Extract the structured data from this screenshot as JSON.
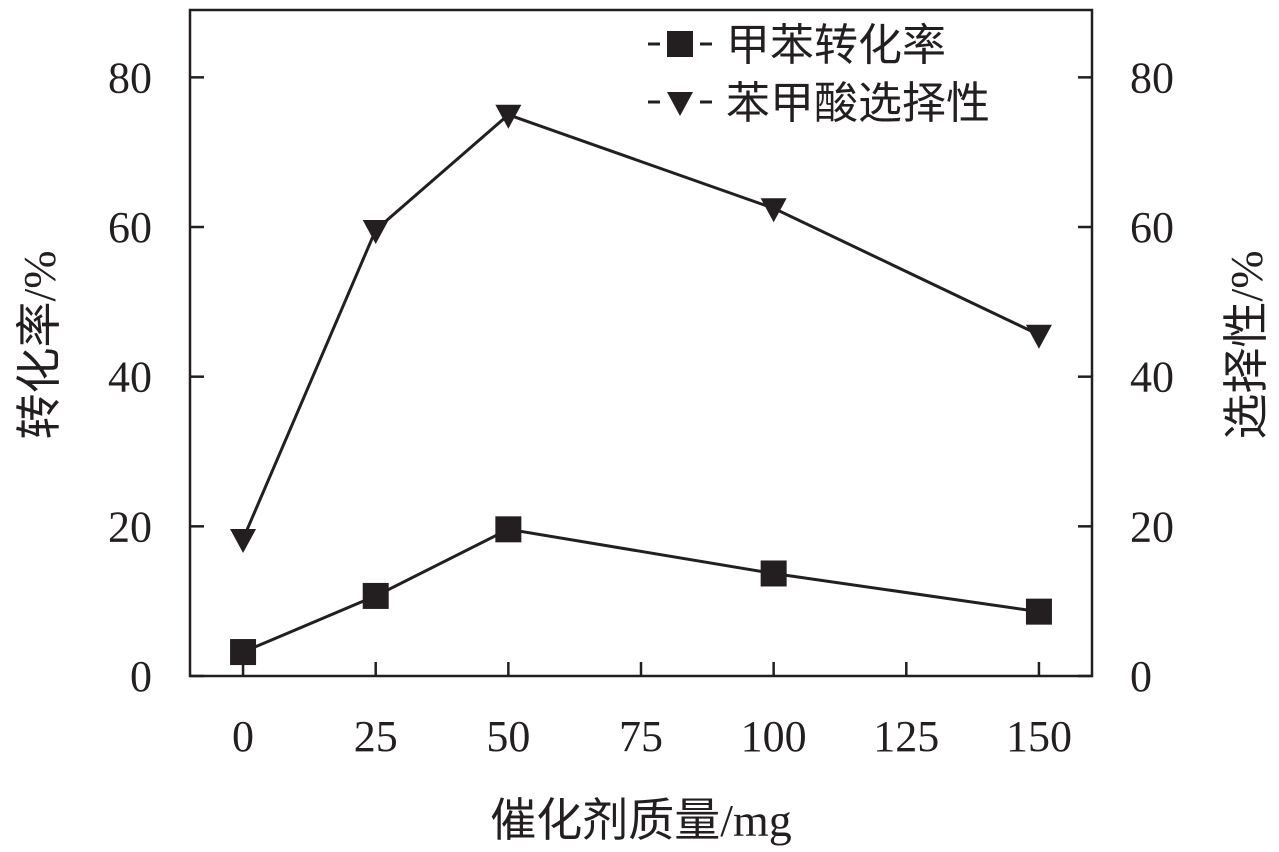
{
  "chart_data": {
    "type": "line",
    "title": "",
    "xlabel": "催化剂质量/mg",
    "ylabel": "转化率/%",
    "y2label": "选择性/%",
    "x": [
      0,
      25,
      50,
      100,
      150
    ],
    "xlim": [
      -10,
      160
    ],
    "ylim": [
      0,
      89
    ],
    "xticks": [
      0,
      25,
      50,
      75,
      100,
      125,
      150
    ],
    "yticks": [
      0,
      20,
      40,
      60,
      80
    ],
    "legend_position": "top-right",
    "grid": false,
    "series": [
      {
        "name": "甲苯转化率",
        "marker": "square",
        "axis": "left",
        "values": [
          3.2,
          10.7,
          19.6,
          13.7,
          8.6
        ],
        "color": "#231f20"
      },
      {
        "name": "苯甲酸选择性",
        "marker": "triangle-down",
        "axis": "right",
        "values": [
          18.3,
          59.6,
          75.0,
          62.5,
          45.6
        ],
        "color": "#231f20"
      }
    ]
  }
}
